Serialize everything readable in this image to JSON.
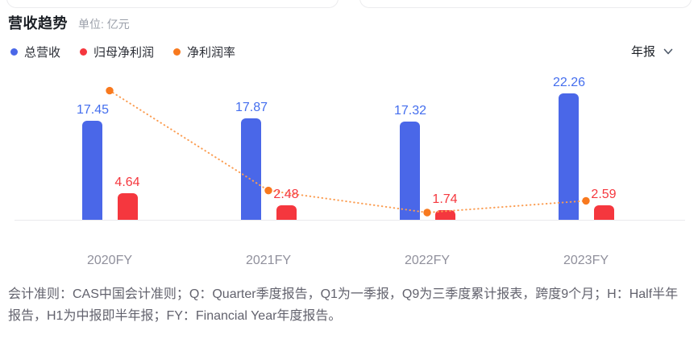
{
  "header": {
    "title": "营收趋势",
    "unit_label": "单位: 亿元",
    "period_selector": {
      "value": "年报"
    }
  },
  "legend": [
    {
      "label": "总营收",
      "color": "#4a67e8"
    },
    {
      "label": "归母净利润",
      "color": "#f5373e"
    },
    {
      "label": "净利润率",
      "color": "#f8791e"
    }
  ],
  "chart_data": {
    "type": "bar",
    "categories": [
      "2020FY",
      "2021FY",
      "2022FY",
      "2023FY"
    ],
    "series": [
      {
        "name": "总营收",
        "type": "bar",
        "color": "#4a67e8",
        "values": [
          17.45,
          17.87,
          17.32,
          22.26
        ]
      },
      {
        "name": "归母净利润",
        "type": "bar",
        "color": "#f5373e",
        "values": [
          4.64,
          2.48,
          1.74,
          2.59
        ]
      },
      {
        "name": "净利润率",
        "type": "line",
        "style": "dotted",
        "color": "#f8791e",
        "values_pct": [
          26.6,
          13.0,
          10.0,
          11.6
        ],
        "estimated_from_plot": true
      }
    ],
    "unit": "亿元",
    "data_labels": true,
    "grid": false,
    "legend_position": "top-left"
  },
  "footnote": "会计准则：CAS中国会计准则；Q：Quarter季度报告，Q1为一季报，Q9为三季度累计报表，跨度9个月；H：Half半年报告，H1为中报即半年报；FY：Financial Year年度报告。",
  "colors": {
    "revenue_bar": "#4a67e8",
    "profit_bar": "#f5373e",
    "margin_line": "#f8791e",
    "axis_label": "#90909c",
    "footnote_text": "#62626d"
  }
}
